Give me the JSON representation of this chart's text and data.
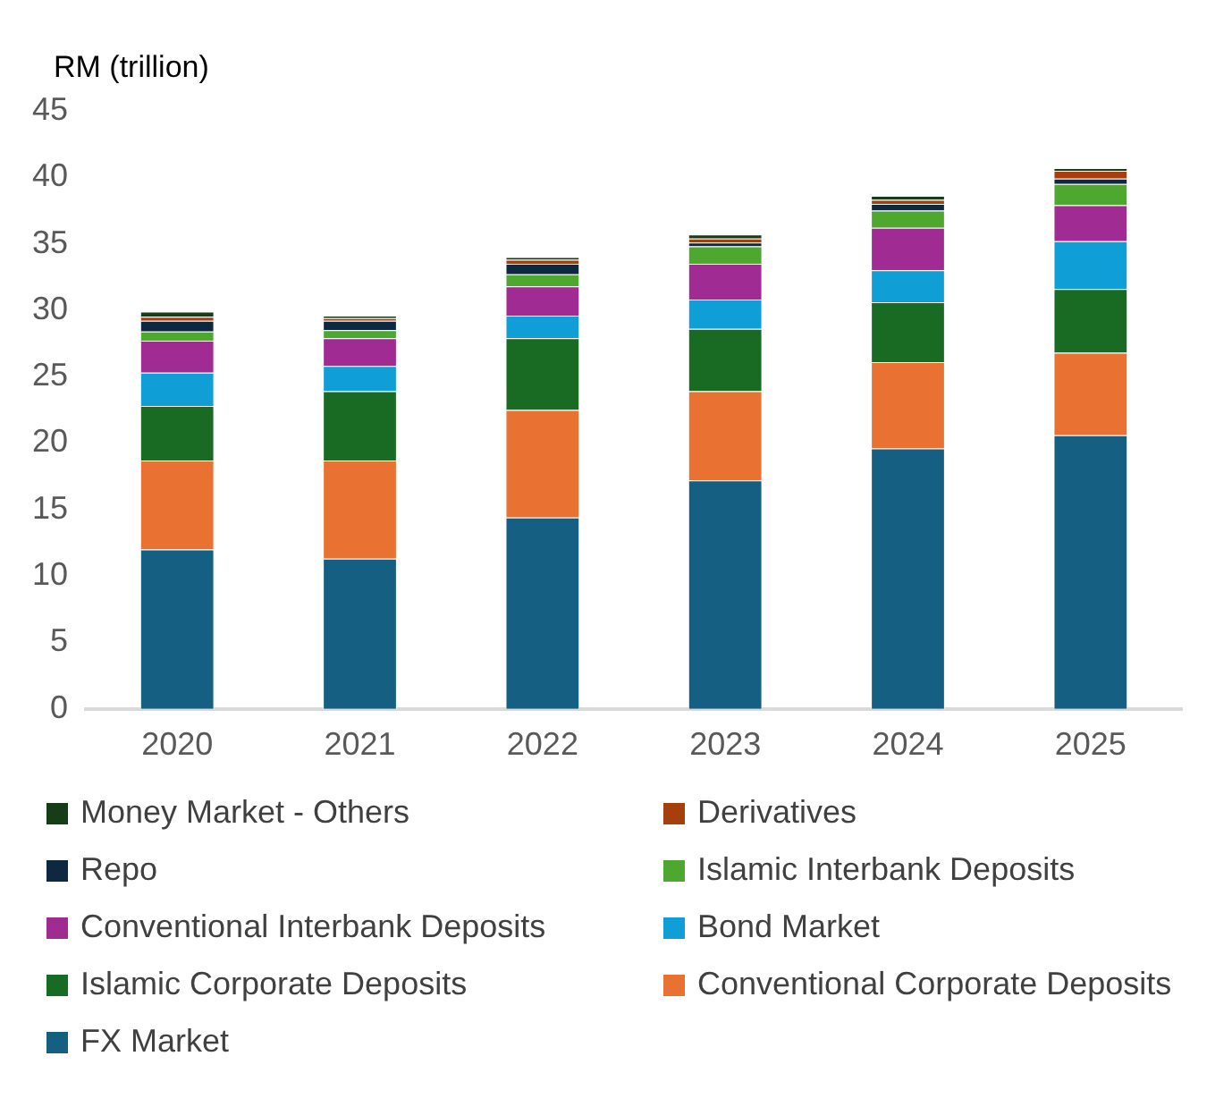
{
  "chart_data": {
    "type": "bar",
    "ylabel": "RM (trillion)",
    "categories": [
      "2020",
      "2021",
      "2022",
      "2023",
      "2024",
      "2025"
    ],
    "stacked": true,
    "ylim": [
      0,
      45
    ],
    "yticks": [
      0,
      5,
      10,
      15,
      20,
      25,
      30,
      35,
      40,
      45
    ],
    "grid": false,
    "legend": "bottom",
    "series": [
      {
        "name": "FX Market",
        "color": "#156082",
        "values": [
          12.0,
          11.3,
          14.4,
          17.2,
          19.6,
          20.6
        ]
      },
      {
        "name": "Conventional Corporate Deposits",
        "color": "#e97132",
        "values": [
          6.7,
          7.4,
          8.1,
          6.7,
          6.5,
          6.2
        ]
      },
      {
        "name": "Islamic Corporate Deposits",
        "color": "#196b24",
        "values": [
          4.1,
          5.2,
          5.4,
          4.7,
          4.5,
          4.8
        ]
      },
      {
        "name": "Bond Market",
        "color": "#0f9ed5",
        "values": [
          2.5,
          1.9,
          1.7,
          2.2,
          2.4,
          3.6
        ]
      },
      {
        "name": "Conventional Interbank Deposits",
        "color": "#a02b93",
        "values": [
          2.4,
          2.1,
          2.2,
          2.7,
          3.2,
          2.7
        ]
      },
      {
        "name": "Islamic Interbank Deposits",
        "color": "#4ea72e",
        "values": [
          0.7,
          0.6,
          0.9,
          1.3,
          1.3,
          1.6
        ]
      },
      {
        "name": "Repo",
        "color": "#0e2841",
        "values": [
          0.8,
          0.7,
          0.8,
          0.3,
          0.5,
          0.4
        ]
      },
      {
        "name": "Derivatives",
        "color": "#a5400e",
        "values": [
          0.3,
          0.2,
          0.3,
          0.3,
          0.3,
          0.6
        ]
      },
      {
        "name": "Money Market - Others",
        "color": "#143d18",
        "values": [
          0.4,
          0.2,
          0.2,
          0.3,
          0.3,
          0.2
        ]
      }
    ]
  }
}
